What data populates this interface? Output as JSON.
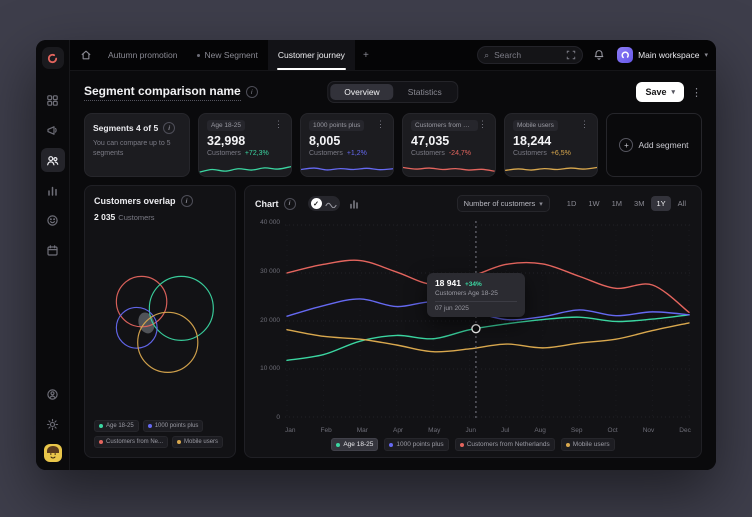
{
  "palette": {
    "green": "#3bd6a1",
    "blue": "#6569f1",
    "red": "#e4655e",
    "yellow": "#d9a84e",
    "window_bg": "#0a0a0c",
    "card_bg": "#1c1c20",
    "text_muted": "#8a8a93"
  },
  "icons": {
    "info": "i",
    "kebab": "⋮",
    "plus": "+",
    "chevron_down": "▾",
    "search": "⌕",
    "check": "✓"
  },
  "topbar": {
    "tabs": [
      {
        "label": "Autumn promotion",
        "active": false
      },
      {
        "label": "New Segment",
        "active": false,
        "dot": true
      },
      {
        "label": "Customer journey",
        "active": true
      }
    ],
    "new_tab_label": "+",
    "search": {
      "placeholder": "Search"
    },
    "workspace": {
      "label": "Main workspace"
    }
  },
  "sidebar": {
    "items": [
      "dashboard",
      "campaigns",
      "customers",
      "analytics",
      "feedback",
      "calendar"
    ],
    "active_item": "customers",
    "bottom_items": [
      "account",
      "settings",
      "avatar"
    ]
  },
  "header": {
    "title": "Segment comparison name",
    "views": [
      {
        "label": "Overview",
        "active": true
      },
      {
        "label": "Statistics",
        "active": false
      }
    ],
    "save_label": "Save"
  },
  "summary_card": {
    "title": "Segments 4 of 5",
    "subtitle": "You can compare up to 5 segments"
  },
  "segment_cards": [
    {
      "name": "Age 18-25",
      "value": "32,998",
      "unit": "Customers",
      "delta": "+72,3%",
      "color": "#3bd6a1",
      "spark": [
        0.2,
        0.5,
        0.32,
        0.58,
        0.44,
        0.68,
        0.55,
        0.82
      ]
    },
    {
      "name": "1000 points plus",
      "value": "8,005",
      "unit": "Customers",
      "delta": "+1,2%",
      "color": "#6569f1",
      "spark": [
        0.5,
        0.66,
        0.45,
        0.6,
        0.5,
        0.63,
        0.48,
        0.58
      ]
    },
    {
      "name": "Customers from Netherlands",
      "value": "47,035",
      "unit": "Customers",
      "delta": "-24,7%",
      "color": "#e4655e",
      "spark": [
        0.72,
        0.55,
        0.66,
        0.5,
        0.6,
        0.44,
        0.52,
        0.3
      ]
    },
    {
      "name": "Mobile users",
      "value": "18,244",
      "unit": "Customers",
      "delta": "+6,5%",
      "color": "#d9a84e",
      "spark": [
        0.4,
        0.56,
        0.44,
        0.6,
        0.5,
        0.66,
        0.55,
        0.72
      ]
    }
  ],
  "add_segment": {
    "label": "Add segment"
  },
  "overlap": {
    "title": "Customers overlap",
    "value": "2 035",
    "unit": "Customers",
    "legend": [
      {
        "label": "Age 18-25"
      },
      {
        "label": "1000 points plus"
      },
      {
        "label": "Customers from Ne..."
      },
      {
        "label": "Mobile users"
      }
    ]
  },
  "chart_panel": {
    "title": "Chart",
    "metric_dropdown": "Number of customers",
    "ranges": [
      "1D",
      "1W",
      "1M",
      "3M",
      "1Y",
      "All"
    ],
    "active_range": "1Y",
    "tooltip": {
      "value": "18 941",
      "delta": "+34%",
      "label": "Customers Age 18-25",
      "date": "07 jun 2025"
    },
    "legend": [
      {
        "label": "Age 18-25",
        "active": true
      },
      {
        "label": "1000 points plus",
        "active": false
      },
      {
        "label": "Customers from Netherlands",
        "active": false
      },
      {
        "label": "Mobile users",
        "active": false
      }
    ]
  },
  "chart_data": {
    "type": "line",
    "title": "Number of customers by month",
    "x": [
      "Jan",
      "Feb",
      "Mar",
      "Apr",
      "May",
      "Jun",
      "Jul",
      "Aug",
      "Sep",
      "Oct",
      "Nov",
      "Dec"
    ],
    "ylim": [
      0,
      40000
    ],
    "yticks": [
      0,
      10000,
      20000,
      30000,
      40000
    ],
    "ytick_labels_desc": [
      "40 000",
      "30 000",
      "20 000",
      "10 000",
      "0"
    ],
    "grid": "dotted-horizontal",
    "legend_position": "bottom",
    "series": [
      {
        "name": "Age 18-25",
        "color": "#3bd6a1",
        "values": [
          11800,
          13000,
          15800,
          17000,
          16300,
          18200,
          19400,
          20300,
          20800,
          19900,
          20400,
          21300
        ]
      },
      {
        "name": "1000 points plus",
        "color": "#6569f1",
        "values": [
          21000,
          23200,
          24600,
          23000,
          24000,
          22200,
          20300,
          20900,
          22300,
          21100,
          21900,
          21300
        ]
      },
      {
        "name": "Customers from Netherlands",
        "color": "#e4655e",
        "values": [
          30000,
          31800,
          32600,
          30200,
          27600,
          29200,
          31800,
          31900,
          29300,
          26800,
          27500,
          21800
        ]
      },
      {
        "name": "Mobile users",
        "color": "#d9a84e",
        "values": [
          18200,
          16800,
          16200,
          15000,
          13600,
          14200,
          15200,
          14400,
          15400,
          16200,
          18000,
          19600
        ]
      }
    ],
    "marker": {
      "series": "Age 18-25",
      "x_frac": 0.47,
      "value": 18941
    }
  }
}
